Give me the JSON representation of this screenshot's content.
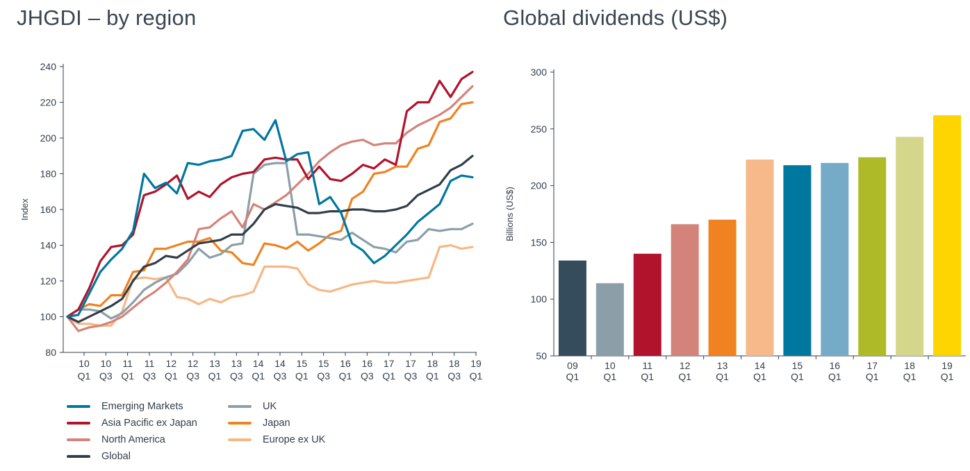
{
  "chart_data": [
    {
      "type": "line",
      "title": "JHGDI – by region",
      "ylabel": "Index",
      "ylim": [
        80,
        240
      ],
      "yticks": [
        80,
        100,
        120,
        140,
        160,
        180,
        200,
        220,
        240
      ],
      "xtick_labels": [
        {
          "year": "10",
          "q": "Q1"
        },
        {
          "year": "10",
          "q": "Q3"
        },
        {
          "year": "11",
          "q": "Q1"
        },
        {
          "year": "11",
          "q": "Q3"
        },
        {
          "year": "12",
          "q": "Q1"
        },
        {
          "year": "12",
          "q": "Q3"
        },
        {
          "year": "13",
          "q": "Q1"
        },
        {
          "year": "13",
          "q": "Q3"
        },
        {
          "year": "14",
          "q": "Q1"
        },
        {
          "year": "14",
          "q": "Q3"
        },
        {
          "year": "15",
          "q": "Q1"
        },
        {
          "year": "15",
          "q": "Q3"
        },
        {
          "year": "16",
          "q": "Q1"
        },
        {
          "year": "16",
          "q": "Q3"
        },
        {
          "year": "17",
          "q": "Q1"
        },
        {
          "year": "17",
          "q": "Q3"
        },
        {
          "year": "18",
          "q": "Q1"
        },
        {
          "year": "18",
          "q": "Q3"
        },
        {
          "year": "19",
          "q": "Q1"
        }
      ],
      "grid": false,
      "legend_position": "bottom",
      "series": [
        {
          "name": "Emerging Markets",
          "color": "#00779e",
          "values": [
            100,
            101,
            113,
            125,
            132,
            138,
            148,
            180,
            172,
            175,
            169,
            186,
            185,
            187,
            188,
            190,
            204,
            205,
            199,
            210,
            187,
            191,
            192,
            163,
            167,
            158,
            141,
            137,
            130,
            134,
            140,
            146,
            153,
            158,
            163,
            176,
            179,
            178
          ]
        },
        {
          "name": "Asia Pacific ex Japan",
          "color": "#b0132b",
          "values": [
            100,
            104,
            116,
            131,
            139,
            140,
            146,
            168,
            170,
            174,
            179,
            166,
            170,
            167,
            174,
            178,
            180,
            181,
            188,
            189,
            188,
            188,
            177,
            184,
            177,
            176,
            180,
            185,
            183,
            188,
            185,
            215,
            220,
            220,
            232,
            223,
            233,
            237
          ]
        },
        {
          "name": "North America",
          "color": "#d4837a",
          "values": [
            100,
            92,
            94,
            95,
            97,
            100,
            105,
            110,
            114,
            119,
            125,
            132,
            149,
            150,
            155,
            159,
            150,
            163,
            160,
            164,
            168,
            174,
            180,
            187,
            192,
            196,
            198,
            199,
            196,
            197,
            197,
            203,
            207,
            210,
            213,
            217,
            223,
            229
          ]
        },
        {
          "name": "Global",
          "color": "#313e49",
          "values": [
            100,
            97,
            100,
            103,
            106,
            110,
            120,
            128,
            130,
            134,
            133,
            137,
            141,
            142,
            143,
            146,
            146,
            152,
            160,
            163,
            162,
            161,
            158,
            158,
            159,
            159,
            160,
            160,
            159,
            159,
            160,
            162,
            168,
            171,
            174,
            182,
            185,
            190
          ]
        },
        {
          "name": "UK",
          "color": "#8b9fa9",
          "values": [
            100,
            104,
            104,
            103,
            99,
            102,
            108,
            115,
            119,
            122,
            124,
            130,
            138,
            133,
            135,
            140,
            141,
            180,
            185,
            186,
            186,
            146,
            146,
            145,
            144,
            143,
            147,
            143,
            139,
            138,
            136,
            142,
            143,
            149,
            148,
            149,
            149,
            152
          ]
        },
        {
          "name": "Japan",
          "color": "#f08221",
          "values": [
            100,
            104,
            107,
            106,
            112,
            112,
            125,
            126,
            138,
            138,
            140,
            142,
            142,
            144,
            137,
            136,
            130,
            129,
            141,
            140,
            138,
            142,
            137,
            141,
            146,
            148,
            166,
            170,
            180,
            181,
            184,
            184,
            194,
            196,
            209,
            211,
            219,
            220
          ]
        },
        {
          "name": "Europe ex UK",
          "color": "#f7b784",
          "values": [
            100,
            96,
            96,
            95,
            95,
            103,
            121,
            122,
            121,
            122,
            111,
            110,
            107,
            110,
            108,
            111,
            112,
            114,
            128,
            128,
            128,
            127,
            118,
            115,
            114,
            116,
            118,
            119,
            120,
            119,
            119,
            120,
            121,
            122,
            139,
            140,
            138,
            139
          ]
        }
      ]
    },
    {
      "type": "bar",
      "title": "Global dividends (US$)",
      "ylabel": "Billions (US$)",
      "ylim": [
        50,
        300
      ],
      "yticks": [
        50,
        100,
        150,
        200,
        250,
        300
      ],
      "grid": false,
      "categories": [
        {
          "year": "09",
          "q": "Q1"
        },
        {
          "year": "10",
          "q": "Q1"
        },
        {
          "year": "11",
          "q": "Q1"
        },
        {
          "year": "12",
          "q": "Q1"
        },
        {
          "year": "13",
          "q": "Q1"
        },
        {
          "year": "14",
          "q": "Q1"
        },
        {
          "year": "15",
          "q": "Q1"
        },
        {
          "year": "16",
          "q": "Q1"
        },
        {
          "year": "17",
          "q": "Q1"
        },
        {
          "year": "18",
          "q": "Q1"
        },
        {
          "year": "19",
          "q": "Q1"
        }
      ],
      "values": [
        134,
        114,
        140,
        166,
        170,
        223,
        218,
        220,
        225,
        243,
        262
      ],
      "colors": [
        "#344c5c",
        "#8c9fa9",
        "#b0132b",
        "#d4837a",
        "#f08221",
        "#f8b98a",
        "#00779e",
        "#76abc8",
        "#afba28",
        "#d4d68b",
        "#fed500"
      ]
    }
  ]
}
